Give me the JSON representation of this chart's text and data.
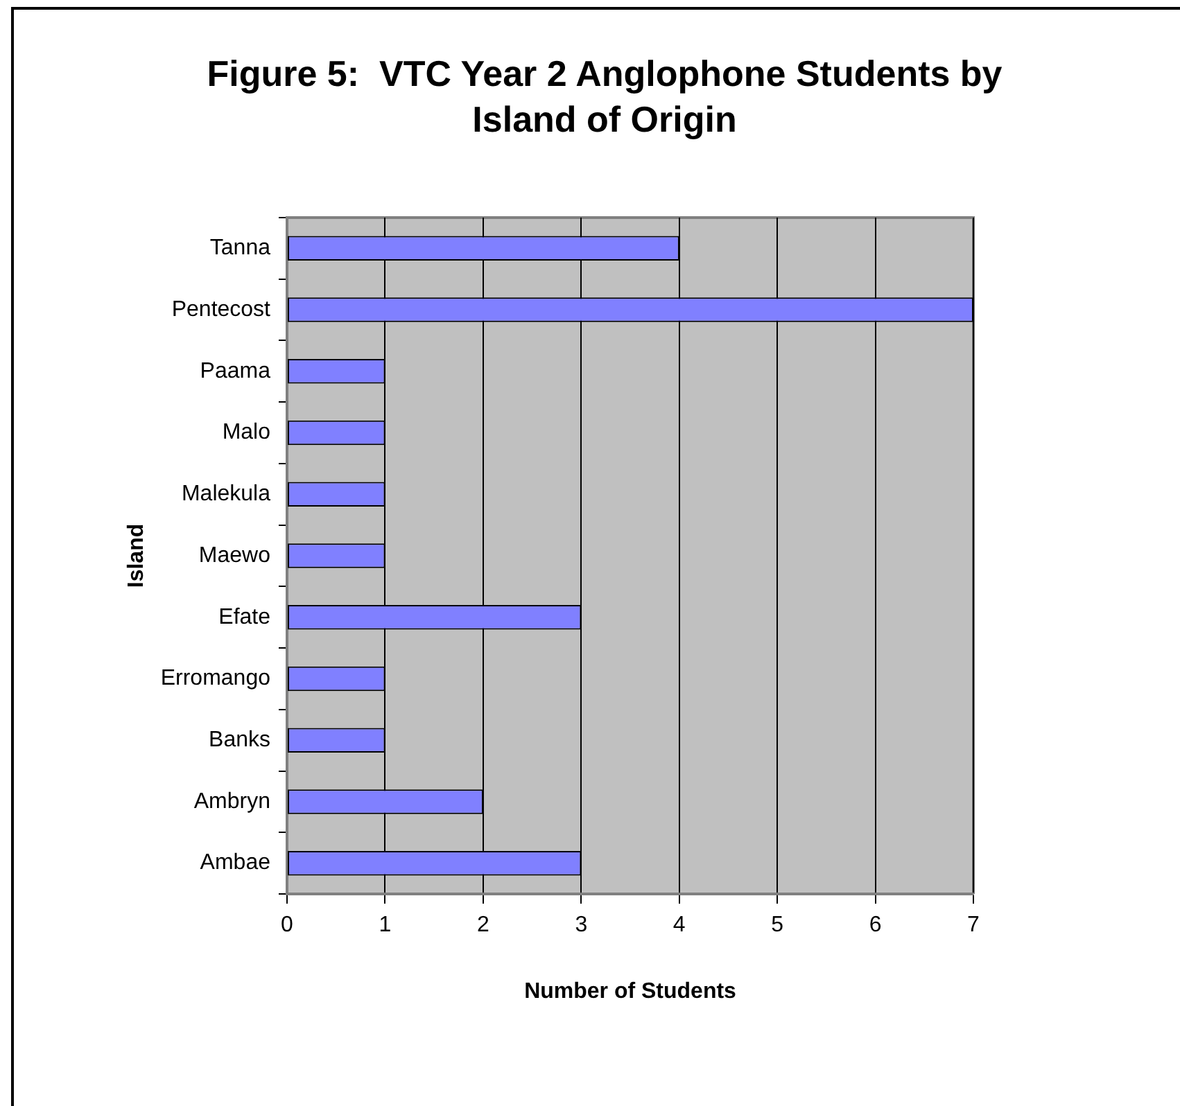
{
  "chart_data": {
    "type": "bar",
    "orientation": "horizontal",
    "title": "Figure 5:  VTC Year 2 Anglophone Students by Island of Origin",
    "xlabel": "Number of Students",
    "ylabel": "Island",
    "categories": [
      "Tanna",
      "Pentecost",
      "Paama",
      "Malo",
      "Malekula",
      "Maewo",
      "Efate",
      "Erromango",
      "Banks",
      "Ambryn",
      "Ambae"
    ],
    "values": [
      4,
      7,
      1,
      1,
      1,
      1,
      3,
      1,
      1,
      2,
      3
    ],
    "color": "#8080ff",
    "xlim": [
      0,
      7
    ],
    "xticks": [
      0,
      1,
      2,
      3,
      4,
      5,
      6,
      7
    ],
    "grid": "x"
  }
}
